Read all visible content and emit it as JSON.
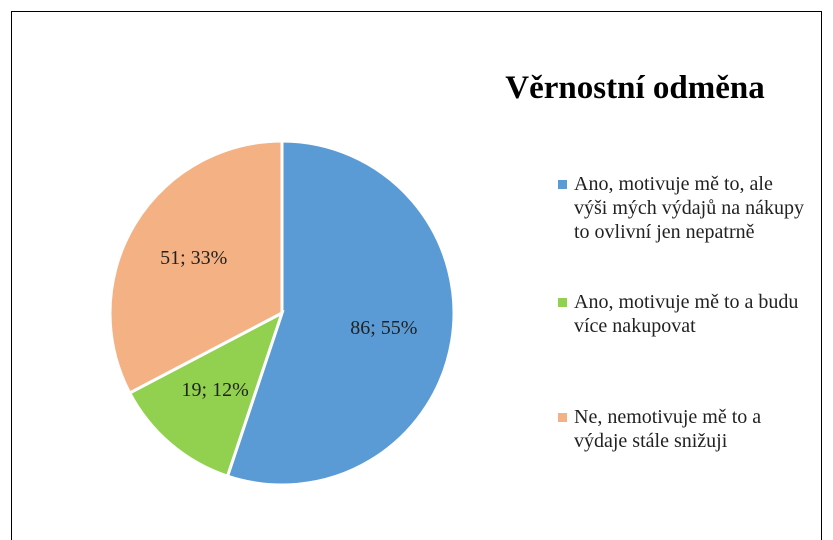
{
  "chart_data": {
    "type": "pie",
    "title": "Věrnostní odměna",
    "categories": [
      "Ano, motivuje mě to, ale výši mých výdajů na nákupy to ovlivní jen nepatrně",
      "Ano, motivuje mě to a budu více nakupovat",
      "Ne, nemotivuje mě to a výdaje stále snižuji"
    ],
    "values": [
      86,
      19,
      51
    ],
    "value_labels": [
      "86; 55%",
      "19; 12%",
      "51; 33%"
    ],
    "colors": [
      "#5b9bd5",
      "#92d050",
      "#f4b183"
    ],
    "legend": "right"
  }
}
